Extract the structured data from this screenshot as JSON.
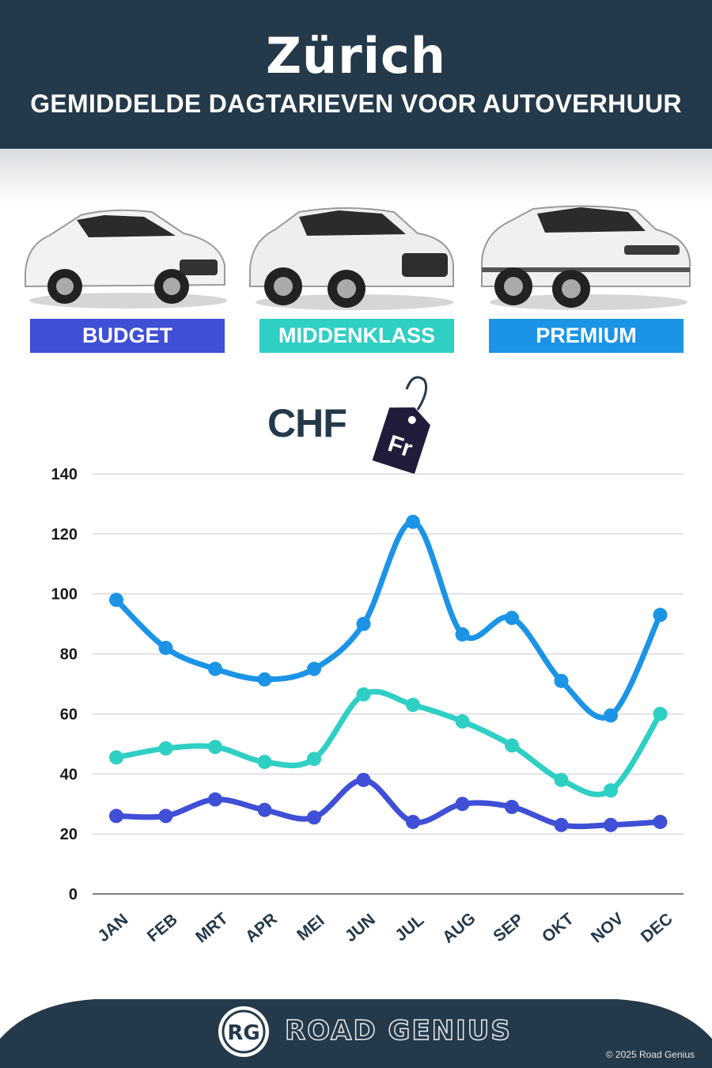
{
  "header": {
    "title": "Zürich",
    "subtitle": "GEMIDDELDE DAGTARIEVEN VOOR AUTOVERHUUR"
  },
  "categories_bar": [
    {
      "label": "BUDGET",
      "color": "#3f4fd6",
      "icon": "hatchback-car-icon"
    },
    {
      "label": "MIDDENKLASS",
      "color": "#2fcfc4",
      "icon": "suv-car-icon"
    },
    {
      "label": "PREMIUM",
      "color": "#1b94e6",
      "icon": "luxury-suv-car-icon"
    }
  ],
  "currency": {
    "label": "CHF",
    "tag_text": "Fr",
    "icon": "price-tag-icon"
  },
  "chart_data": {
    "type": "line",
    "categories": [
      "JAN",
      "FEB",
      "MRT",
      "APR",
      "MEI",
      "JUN",
      "JUL",
      "AUG",
      "SEP",
      "OKT",
      "NOV",
      "DEC"
    ],
    "series": [
      {
        "name": "PREMIUM",
        "color": "#1b94e6",
        "values": [
          98,
          82,
          75,
          71.5,
          75,
          90,
          124,
          86.5,
          92,
          71,
          59.5,
          93
        ]
      },
      {
        "name": "MIDDENKLASS",
        "color": "#2fcfc4",
        "values": [
          45.5,
          48.5,
          49,
          44,
          45,
          66.5,
          63,
          57.5,
          49.5,
          38,
          34.5,
          60
        ]
      },
      {
        "name": "BUDGET",
        "color": "#3f4fd6",
        "values": [
          26,
          26,
          31.5,
          28,
          25.5,
          38,
          24,
          30,
          29,
          23,
          23,
          24
        ]
      }
    ],
    "yticks": [
      "0",
      "20",
      "40",
      "60",
      "80",
      "100",
      "120",
      "140"
    ],
    "ylim": [
      0,
      140
    ],
    "grid": true,
    "title": "",
    "xlabel": "",
    "ylabel": ""
  },
  "footer": {
    "logo_text": "RG",
    "brand": "ROAD GENIUS",
    "copyright": "© 2025 Road Genius",
    "background": "#24394a"
  }
}
